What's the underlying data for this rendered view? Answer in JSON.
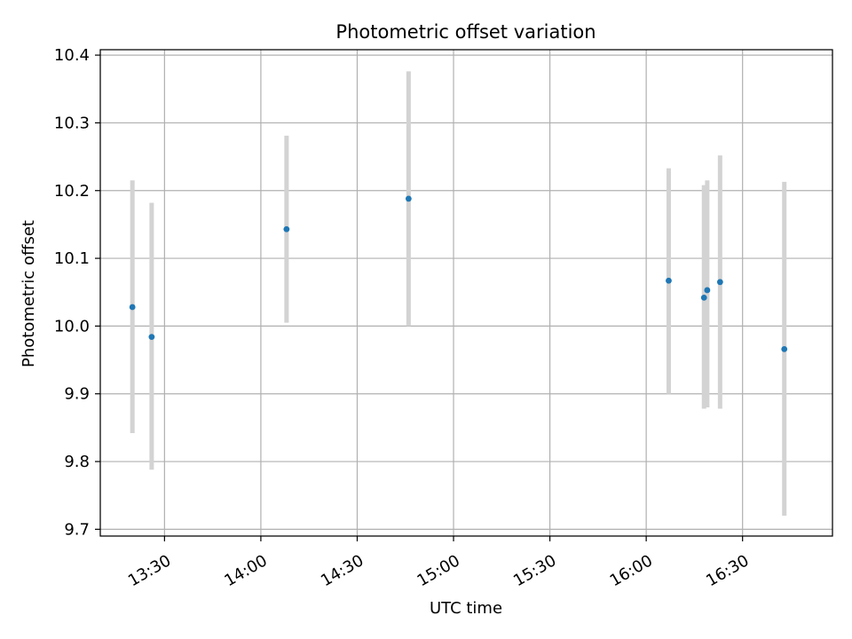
{
  "chart_data": {
    "type": "scatter",
    "title": "Photometric offset variation",
    "xlabel": "UTC time",
    "ylabel": "Photometric offset",
    "x_tick_labels": [
      "13:30",
      "14:00",
      "14:30",
      "15:00",
      "15:30",
      "16:00",
      "16:30"
    ],
    "y_tick_labels": [
      "9.7",
      "9.8",
      "9.9",
      "10.0",
      "10.1",
      "10.2",
      "10.3",
      "10.4"
    ],
    "x_ticks": [
      "13:30",
      "14:00",
      "14:30",
      "15:00",
      "15:30",
      "16:00",
      "16:30"
    ],
    "y_ticks": [
      9.7,
      9.8,
      9.9,
      10.0,
      10.1,
      10.2,
      10.3,
      10.4
    ],
    "xlim": [
      "13:10",
      "16:58"
    ],
    "ylim": [
      9.69,
      10.408
    ],
    "grid": true,
    "series": [
      {
        "points": [
          {
            "x": "13:20",
            "y": 10.028,
            "ylow": 9.842,
            "yhigh": 10.215
          },
          {
            "x": "13:26",
            "y": 9.984,
            "ylow": 9.788,
            "yhigh": 10.182
          },
          {
            "x": "14:08",
            "y": 10.143,
            "ylow": 10.005,
            "yhigh": 10.281
          },
          {
            "x": "14:46",
            "y": 10.188,
            "ylow": 10.0,
            "yhigh": 10.376
          },
          {
            "x": "16:07",
            "y": 10.067,
            "ylow": 9.9,
            "yhigh": 10.233
          },
          {
            "x": "16:18",
            "y": 10.042,
            "ylow": 9.878,
            "yhigh": 10.208
          },
          {
            "x": "16:19",
            "y": 10.053,
            "ylow": 9.88,
            "yhigh": 10.215
          },
          {
            "x": "16:23",
            "y": 10.065,
            "ylow": 9.878,
            "yhigh": 10.252
          },
          {
            "x": "16:43",
            "y": 9.966,
            "ylow": 9.72,
            "yhigh": 10.213
          }
        ]
      }
    ],
    "colors": {
      "marker": "#1f77b4",
      "errorbar": "#d3d3d3",
      "grid": "#b0b0b0",
      "axes": "#000000"
    }
  }
}
